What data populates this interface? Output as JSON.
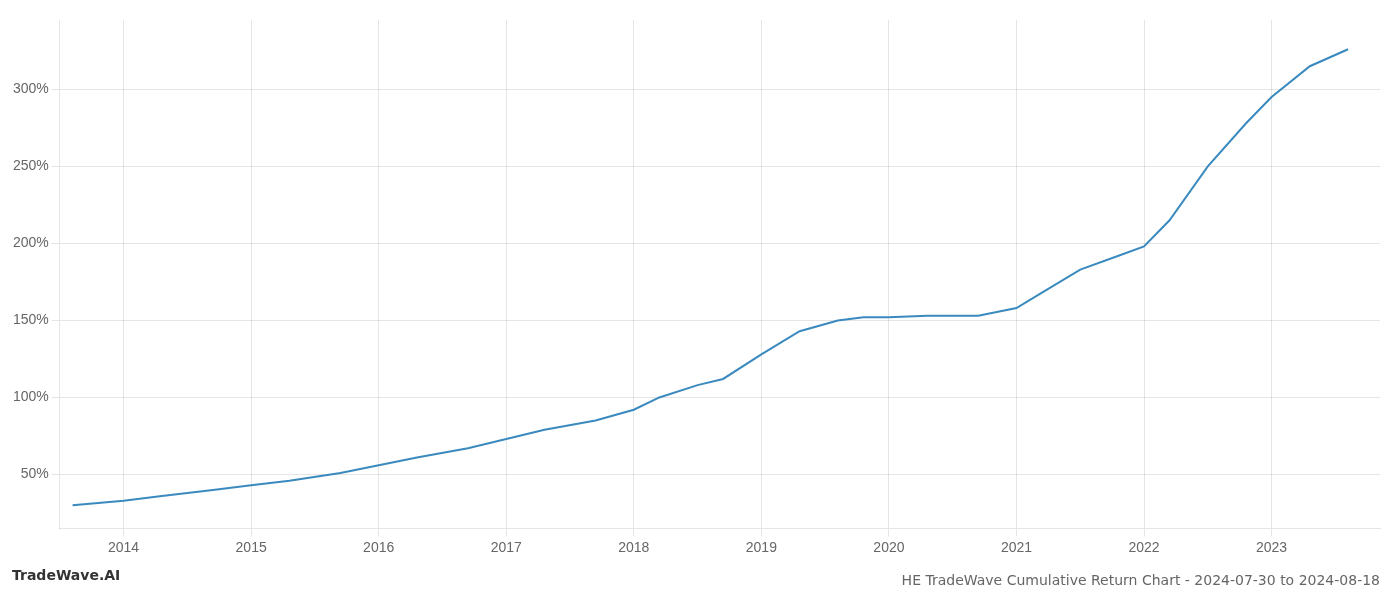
{
  "chart_data": {
    "type": "line",
    "title": "HE TradeWave Cumulative Return Chart - 2024-07-30 to 2024-08-18",
    "annotations": [
      "TradeWave.AI"
    ],
    "x": [
      2013.6,
      2014.0,
      2014.3,
      2014.7,
      2015.0,
      2015.3,
      2015.7,
      2016.0,
      2016.3,
      2016.7,
      2017.0,
      2017.3,
      2017.7,
      2018.0,
      2018.2,
      2018.5,
      2018.7,
      2019.0,
      2019.3,
      2019.6,
      2019.8,
      2020.0,
      2020.3,
      2020.7,
      2021.0,
      2021.2,
      2021.5,
      2021.8,
      2022.0,
      2022.2,
      2022.5,
      2022.8,
      2023.0,
      2023.3,
      2023.6
    ],
    "values": [
      30,
      33,
      36,
      40,
      43,
      46,
      51,
      56,
      61,
      67,
      73,
      79,
      85,
      92,
      100,
      108,
      112,
      128,
      143,
      150,
      152,
      152,
      153,
      153,
      158,
      168,
      183,
      192,
      198,
      215,
      250,
      278,
      295,
      315,
      326
    ],
    "color": "#3a8abf",
    "xlim": [
      2013.5,
      2023.85
    ],
    "ylim": [
      15,
      345
    ],
    "xticks": [
      2014,
      2015,
      2016,
      2017,
      2018,
      2019,
      2020,
      2021,
      2022,
      2023
    ],
    "yticks": [
      {
        "value": 50,
        "label": "50%"
      },
      {
        "value": 100,
        "label": "100%"
      },
      {
        "value": 150,
        "label": "150%"
      },
      {
        "value": 200,
        "label": "200%"
      },
      {
        "value": 250,
        "label": "250%"
      },
      {
        "value": 300,
        "label": "300%"
      }
    ],
    "grid": true
  }
}
